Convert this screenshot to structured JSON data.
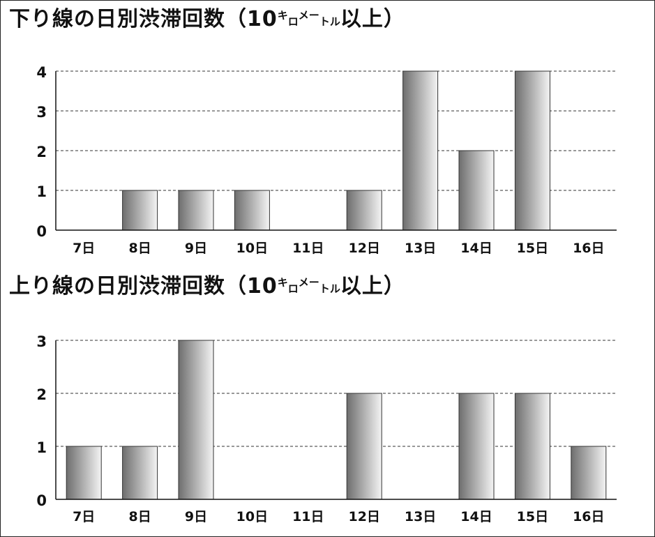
{
  "chart_data": [
    {
      "type": "bar",
      "title": "下り線の日別渋滞回数（10キロメートル以上）",
      "categories": [
        "7日",
        "8日",
        "9日",
        "10日",
        "11日",
        "12日",
        "13日",
        "14日",
        "15日",
        "16日"
      ],
      "values": [
        0,
        1,
        1,
        1,
        0,
        1,
        4,
        2,
        4,
        0
      ],
      "yticks": [
        "0",
        "1",
        "2",
        "3",
        "4"
      ],
      "ylim": [
        0,
        4
      ],
      "grid": "dashed horizontal"
    },
    {
      "type": "bar",
      "title": "上り線の日別渋滞回数（10キロメートル以上）",
      "categories": [
        "7日",
        "8日",
        "9日",
        "10日",
        "11日",
        "12日",
        "13日",
        "14日",
        "15日",
        "16日"
      ],
      "values": [
        1,
        1,
        3,
        0,
        0,
        2,
        0,
        2,
        2,
        1
      ],
      "yticks": [
        "0",
        "1",
        "2",
        "3"
      ],
      "ylim": [
        0,
        3
      ],
      "grid": "dashed horizontal"
    }
  ],
  "titles": {
    "down": {
      "main": "下り線の日別渋滞回数（10",
      "ki": "キ",
      "ro": "ロ",
      "me": "メ",
      "to": "ー",
      "ru": "トル",
      "tail": "以上）"
    },
    "up": {
      "main": "上り線の日別渋滞回数（10",
      "ki": "キ",
      "ro": "ロ",
      "me": "メ",
      "to": "ー",
      "ru": "トル",
      "tail": "以上）"
    }
  },
  "colors": {
    "bar_dark": "#6e6e6e",
    "bar_light": "#f4f4f4",
    "bar_stroke": "#333333",
    "grid": "#333333",
    "axis": "#111111"
  }
}
